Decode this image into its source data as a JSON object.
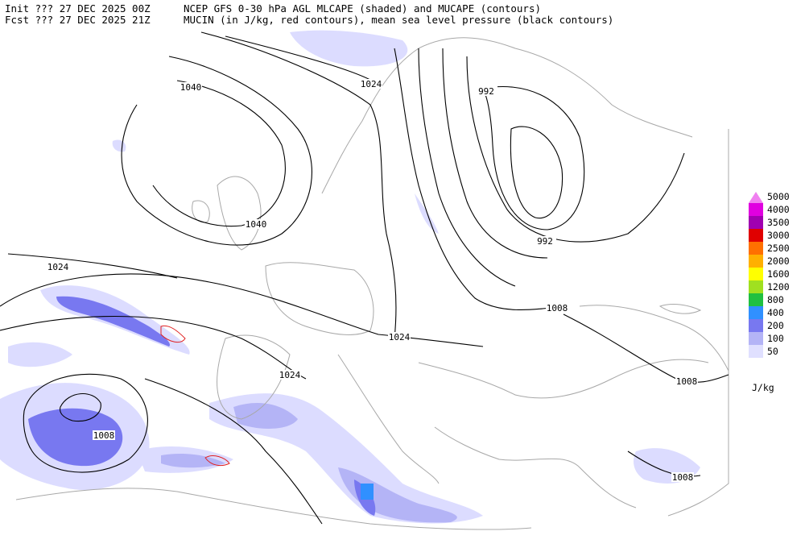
{
  "header": {
    "init": "Init  ??? 27 DEC 2025 00Z",
    "fcst": "Fcst ??? 27 DEC 2025 21Z",
    "line1": "NCEP GFS 0-30 hPa AGL MLCAPE (shaded) and MUCAPE (contours)",
    "line2": "MUCIN (in J/kg, red contours), mean sea level pressure (black contours)"
  },
  "pressure_labels": [
    1040,
    1024,
    992,
    1040,
    992,
    1024,
    1008,
    1024,
    1024,
    1008,
    1008,
    1008
  ],
  "colorbar": {
    "unit": "J/kg",
    "levels": [
      {
        "value": 5000,
        "color": "#f080f0"
      },
      {
        "value": 4000,
        "color": "#e000e0"
      },
      {
        "value": 3500,
        "color": "#a000b0"
      },
      {
        "value": 3000,
        "color": "#e00000"
      },
      {
        "value": 2500,
        "color": "#ff7000"
      },
      {
        "value": 2000,
        "color": "#ffb000"
      },
      {
        "value": 1600,
        "color": "#ffff00"
      },
      {
        "value": 1200,
        "color": "#a0e020"
      },
      {
        "value": 800,
        "color": "#20c040"
      },
      {
        "value": 400,
        "color": "#3090ff"
      },
      {
        "value": 200,
        "color": "#7878f0"
      },
      {
        "value": 100,
        "color": "#b4b4f6"
      },
      {
        "value": 50,
        "color": "#e0e0ff"
      }
    ]
  }
}
